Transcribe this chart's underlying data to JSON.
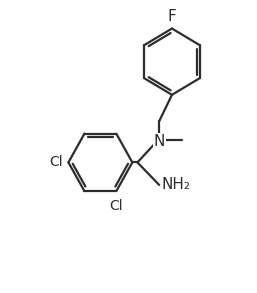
{
  "background": "#ffffff",
  "line_color": "#2d2d2d",
  "line_width": 1.6,
  "font_size": 10,
  "figure_width": 2.57,
  "figure_height": 2.93,
  "dpi": 100,
  "xlim": [
    0,
    10
  ],
  "ylim": [
    0,
    11
  ],
  "fcx": 6.7,
  "fcy": 8.7,
  "fr": 1.25,
  "rcx": 3.2,
  "rcy": 5.2,
  "rr": 1.25
}
